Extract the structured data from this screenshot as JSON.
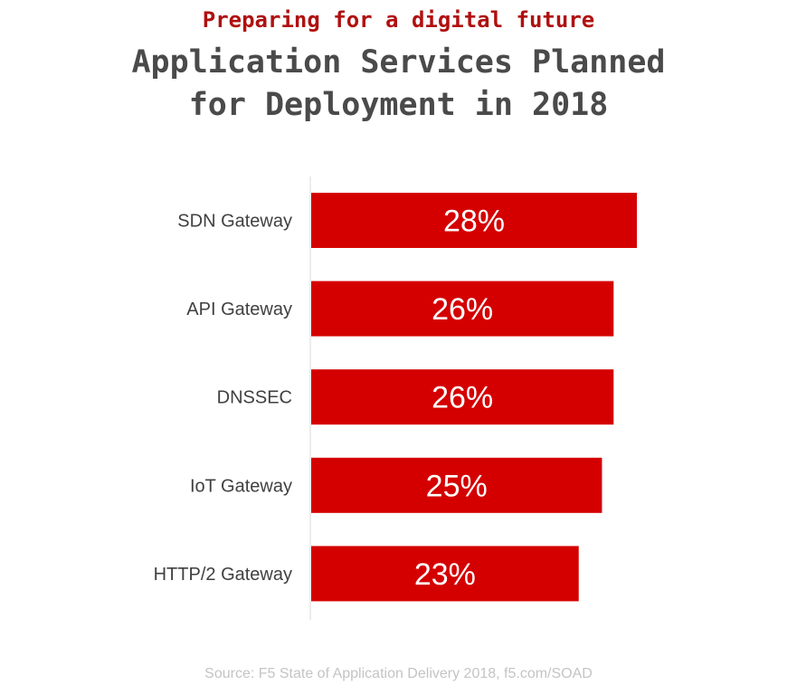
{
  "subtitle": "Preparing for a digital future",
  "title_line1": "Application Services Planned",
  "title_line2": "for Deployment in 2018",
  "source": "Source: F5 State of Application Delivery 2018, f5.com/SOAD",
  "chart_data": {
    "type": "bar",
    "orientation": "horizontal",
    "title": "Application Services Planned for Deployment in 2018",
    "subtitle": "Preparing for a digital future",
    "categories": [
      "SDN Gateway",
      "API Gateway",
      "DNSSEC",
      "IoT Gateway",
      "HTTP/2 Gateway"
    ],
    "values": [
      28,
      26,
      26,
      25,
      23
    ],
    "data_labels": [
      "28%",
      "26%",
      "26%",
      "25%",
      "23%"
    ],
    "unit": "%",
    "xlim": [
      0,
      28
    ],
    "grid": false,
    "bar_color": "#d40000",
    "label_color": "#ffffff"
  }
}
